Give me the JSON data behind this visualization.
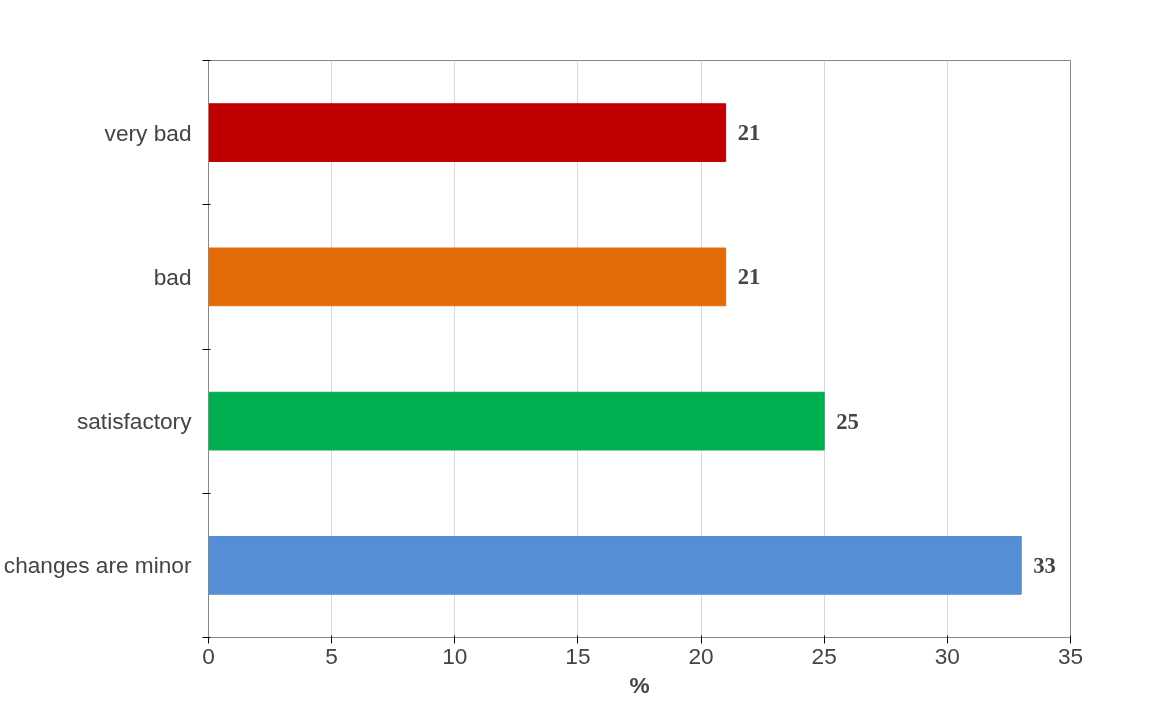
{
  "chart_data": {
    "type": "bar",
    "orientation": "horizontal",
    "xlabel": "%",
    "categories": [
      "very bad",
      "bad",
      "satisfactory",
      "changes are minor"
    ],
    "values": [
      21,
      21,
      25,
      33
    ],
    "colors": [
      "#c00000",
      "#e36c09",
      "#00b050",
      "#558ed5"
    ],
    "xlim": [
      0,
      35
    ],
    "xticks": [
      0,
      5,
      10,
      15,
      20,
      25,
      30,
      35
    ],
    "grid": "x",
    "data_labels": true
  }
}
